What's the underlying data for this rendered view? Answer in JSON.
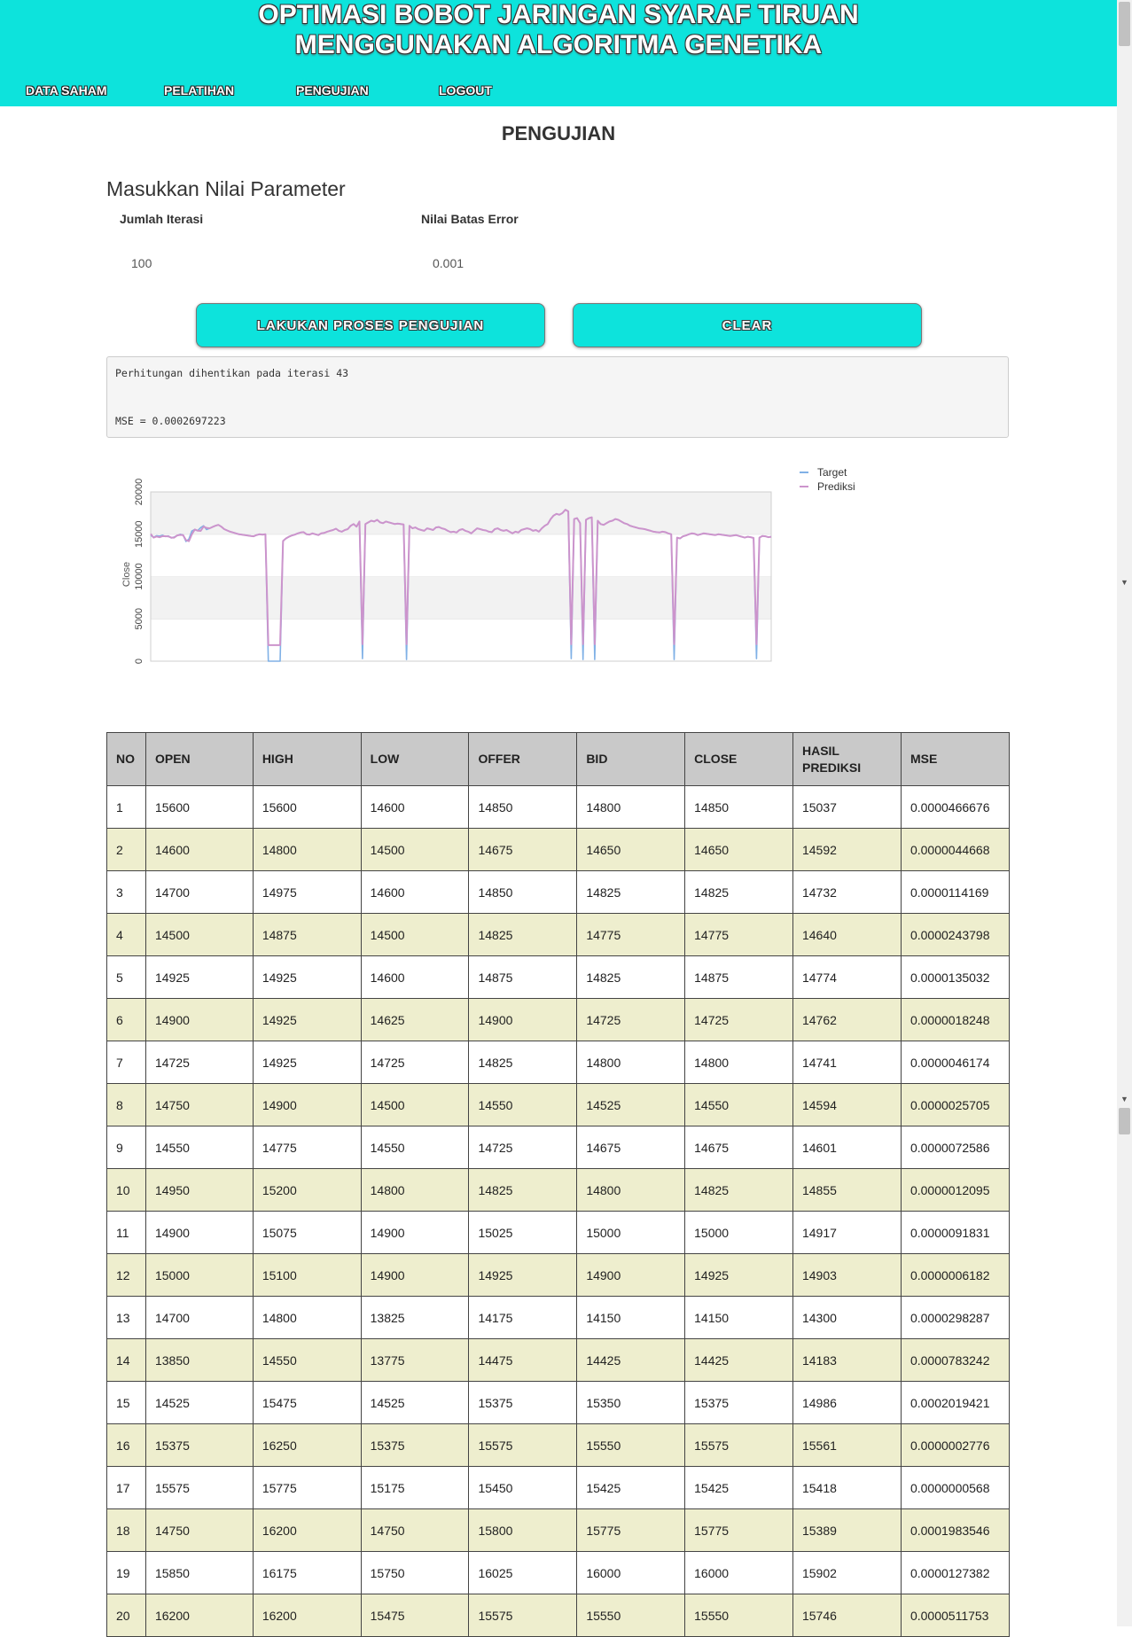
{
  "header": {
    "title_line1": "OPTIMASI BOBOT JARINGAN SYARAF TIRUAN",
    "title_line2": "MENGGUNAKAN ALGORITMA GENETIKA"
  },
  "nav": [
    "DATA SAHAM",
    "PELATIHAN",
    "PENGUJIAN",
    "LOGOUT"
  ],
  "page_title": "PENGUJIAN",
  "form": {
    "section_title": "Masukkan Nilai Parameter",
    "iterasi_label": "Jumlah Iterasi",
    "iterasi_value": "100",
    "error_label": "Nilai Batas Error",
    "error_value": "0.001",
    "submit_label": "LAKUKAN PROSES PENGUJIAN",
    "clear_label": "CLEAR"
  },
  "output": {
    "line1": "Perhitungan dihentikan pada iterasi 43",
    "line2": "MSE = 0.0002697223"
  },
  "chart_data": {
    "type": "line",
    "ylabel": "Close",
    "yticks": [
      "0",
      "5000",
      "10000",
      "15000",
      "20000"
    ],
    "ylim": [
      0,
      20000
    ],
    "legend_position": "top-right",
    "grid": "horizontal bands",
    "colors": {
      "Target": "#80b1e6",
      "Prediksi": "#cc94cc"
    },
    "series": [
      {
        "name": "Target",
        "values": [
          14850,
          14650,
          14825,
          14775,
          14875,
          14725,
          14800,
          14550,
          14675,
          14825,
          15000,
          14925,
          14150,
          14425,
          15375,
          15575,
          15425,
          15775,
          16000,
          15550,
          15700,
          15850,
          16000,
          16100,
          15900,
          15600,
          15450,
          15300,
          15200,
          15100,
          15000,
          14950,
          14900,
          14850,
          14800,
          14750,
          14900,
          15000,
          14950,
          15000,
          0,
          0,
          0,
          0,
          0,
          14200,
          14500,
          14700,
          14850,
          14950,
          15100,
          15200,
          15250,
          15000,
          14950,
          15100,
          15000,
          14900,
          15100,
          15150,
          15300,
          15400,
          15500,
          15650,
          15400,
          15300,
          15500,
          15600,
          16000,
          16200,
          15900,
          16500,
          300,
          16200,
          16400,
          16600,
          16500,
          16700,
          16400,
          16300,
          16500,
          16400,
          16300,
          16200,
          16250,
          16200,
          16150,
          200,
          16000,
          15700,
          15800,
          15600,
          15500,
          15400,
          15700,
          15600,
          15500,
          15800,
          15850,
          15700,
          15600,
          15400,
          15250,
          15300,
          15200,
          15500,
          15600,
          15400,
          15300,
          15100,
          15400,
          15700,
          15600,
          15500,
          15450,
          15300,
          15250,
          15600,
          15700,
          15500,
          15400,
          15500,
          15300,
          15100,
          15300,
          15200,
          15500,
          15600,
          15700,
          15600,
          15400,
          15500,
          15300,
          15700,
          16000,
          16200,
          16800,
          17200,
          17400,
          17300,
          17500,
          17900,
          17700,
          300,
          16800,
          16900,
          16300,
          200,
          16700,
          16900,
          17000,
          200,
          16600,
          16200,
          16100,
          16300,
          16500,
          16600,
          16800,
          16700,
          16500,
          16300,
          16200,
          16000,
          15900,
          15800,
          15700,
          15650,
          15600,
          15500,
          15400,
          15300,
          15250,
          15200,
          15300,
          15250,
          15100,
          15000,
          200,
          14600,
          14500,
          14750,
          14850,
          15000,
          15100,
          15050,
          14900,
          15000,
          15100,
          15050,
          15000,
          14950,
          14900,
          15000,
          14950,
          14900,
          14850,
          14800,
          14850,
          14900,
          14800,
          14700,
          14600,
          14700,
          14650,
          14550,
          300,
          14600,
          14800,
          14750,
          14650,
          14700
        ]
      },
      {
        "name": "Prediksi",
        "values": [
          15037,
          14592,
          14732,
          14640,
          14774,
          14762,
          14741,
          14594,
          14601,
          14855,
          14917,
          14903,
          14300,
          14183,
          14986,
          15561,
          15418,
          15389,
          15902,
          15746,
          15700,
          15850,
          16000,
          16100,
          15900,
          15600,
          15450,
          15300,
          15200,
          15100,
          15000,
          14950,
          14900,
          14850,
          14800,
          14750,
          14900,
          15000,
          14950,
          15000,
          1900,
          1900,
          1900,
          1900,
          1900,
          14200,
          14500,
          14700,
          14850,
          14950,
          15100,
          15200,
          15250,
          15000,
          14950,
          15100,
          15000,
          14900,
          15100,
          15150,
          15300,
          15400,
          15500,
          15650,
          15400,
          15300,
          15500,
          15600,
          16000,
          16200,
          15900,
          16500,
          2000,
          16200,
          16400,
          16600,
          16500,
          16700,
          16400,
          16300,
          16500,
          16400,
          16300,
          16200,
          16250,
          16200,
          16150,
          2000,
          16000,
          15700,
          15800,
          15600,
          15500,
          15400,
          15700,
          15600,
          15500,
          15800,
          15850,
          15700,
          15600,
          15400,
          15250,
          15300,
          15200,
          15500,
          15600,
          15400,
          15300,
          15100,
          15400,
          15700,
          15600,
          15500,
          15450,
          15300,
          15250,
          15600,
          15700,
          15500,
          15400,
          15500,
          15300,
          15100,
          15300,
          15200,
          15500,
          15600,
          15700,
          15600,
          15400,
          15500,
          15300,
          15700,
          16000,
          16200,
          16800,
          17200,
          17400,
          17300,
          17500,
          17900,
          17700,
          2000,
          16800,
          16900,
          16300,
          2000,
          16700,
          16900,
          17000,
          2000,
          16600,
          16200,
          16100,
          16300,
          16500,
          16600,
          16800,
          16700,
          16500,
          16300,
          16200,
          16000,
          15900,
          15800,
          15700,
          15650,
          15600,
          15500,
          15400,
          15300,
          15250,
          15200,
          15300,
          15250,
          15100,
          15000,
          2000,
          14600,
          14500,
          14750,
          14850,
          15000,
          15100,
          15050,
          14900,
          15000,
          15100,
          15050,
          15000,
          14950,
          14900,
          15000,
          14950,
          14900,
          14850,
          14800,
          14850,
          14900,
          14800,
          14700,
          14600,
          14700,
          14650,
          14550,
          2000,
          14600,
          14800,
          14750,
          14650,
          14700
        ]
      }
    ]
  },
  "table": {
    "headers": [
      "NO",
      "OPEN",
      "HIGH",
      "LOW",
      "OFFER",
      "BID",
      "CLOSE",
      "HASIL PREDIKSI",
      "MSE"
    ],
    "rows": [
      [
        "1",
        "15600",
        "15600",
        "14600",
        "14850",
        "14800",
        "14850",
        "15037",
        "0.0000466676"
      ],
      [
        "2",
        "14600",
        "14800",
        "14500",
        "14675",
        "14650",
        "14650",
        "14592",
        "0.0000044668"
      ],
      [
        "3",
        "14700",
        "14975",
        "14600",
        "14850",
        "14825",
        "14825",
        "14732",
        "0.0000114169"
      ],
      [
        "4",
        "14500",
        "14875",
        "14500",
        "14825",
        "14775",
        "14775",
        "14640",
        "0.0000243798"
      ],
      [
        "5",
        "14925",
        "14925",
        "14600",
        "14875",
        "14825",
        "14875",
        "14774",
        "0.0000135032"
      ],
      [
        "6",
        "14900",
        "14925",
        "14625",
        "14900",
        "14725",
        "14725",
        "14762",
        "0.0000018248"
      ],
      [
        "7",
        "14725",
        "14925",
        "14725",
        "14825",
        "14800",
        "14800",
        "14741",
        "0.0000046174"
      ],
      [
        "8",
        "14750",
        "14900",
        "14500",
        "14550",
        "14525",
        "14550",
        "14594",
        "0.0000025705"
      ],
      [
        "9",
        "14550",
        "14775",
        "14550",
        "14725",
        "14675",
        "14675",
        "14601",
        "0.0000072586"
      ],
      [
        "10",
        "14950",
        "15200",
        "14800",
        "14825",
        "14800",
        "14825",
        "14855",
        "0.0000012095"
      ],
      [
        "11",
        "14900",
        "15075",
        "14900",
        "15025",
        "15000",
        "15000",
        "14917",
        "0.0000091831"
      ],
      [
        "12",
        "15000",
        "15100",
        "14900",
        "14925",
        "14900",
        "14925",
        "14903",
        "0.0000006182"
      ],
      [
        "13",
        "14700",
        "14800",
        "13825",
        "14175",
        "14150",
        "14150",
        "14300",
        "0.0000298287"
      ],
      [
        "14",
        "13850",
        "14550",
        "13775",
        "14475",
        "14425",
        "14425",
        "14183",
        "0.0000783242"
      ],
      [
        "15",
        "14525",
        "15475",
        "14525",
        "15375",
        "15350",
        "15375",
        "14986",
        "0.0002019421"
      ],
      [
        "16",
        "15375",
        "16250",
        "15375",
        "15575",
        "15550",
        "15575",
        "15561",
        "0.0000002776"
      ],
      [
        "17",
        "15575",
        "15775",
        "15175",
        "15450",
        "15425",
        "15425",
        "15418",
        "0.0000000568"
      ],
      [
        "18",
        "14750",
        "16200",
        "14750",
        "15800",
        "15775",
        "15775",
        "15389",
        "0.0001983546"
      ],
      [
        "19",
        "15850",
        "16175",
        "15750",
        "16025",
        "16000",
        "16000",
        "15902",
        "0.0000127382"
      ],
      [
        "20",
        "16200",
        "16200",
        "15475",
        "15575",
        "15550",
        "15550",
        "15746",
        "0.0000511753"
      ]
    ]
  }
}
